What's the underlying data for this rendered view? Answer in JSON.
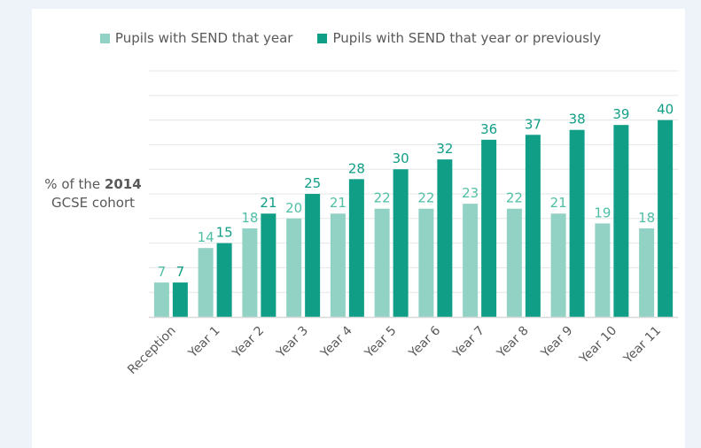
{
  "chart_data": {
    "type": "bar",
    "title": "",
    "xlabel": "",
    "ylabel": "% of the 2014 GCSE cohort",
    "ylabel_parts": {
      "prefix": "% of the ",
      "bold": "2014",
      "suffix": "GCSE cohort"
    },
    "ylim": [
      0,
      50
    ],
    "grid": true,
    "grid_step": 5,
    "legend_position": "top-center",
    "categories": [
      "Reception",
      "Year 1",
      "Year 2",
      "Year 3",
      "Year 4",
      "Year 5",
      "Year 6",
      "Year 7",
      "Year 8",
      "Year 9",
      "Year 10",
      "Year 11"
    ],
    "series": [
      {
        "name": "Pupils with SEND that year",
        "color": "#92d2c5",
        "label_color": "#4fbfa5",
        "values": [
          7,
          14,
          18,
          20,
          21,
          22,
          22,
          23,
          22,
          21,
          19,
          18
        ]
      },
      {
        "name": "Pupils with SEND that year or previously",
        "color": "#119e86",
        "label_color": "#119e86",
        "values": [
          7,
          15,
          21,
          25,
          28,
          30,
          32,
          36,
          37,
          38,
          39,
          40
        ]
      }
    ]
  }
}
